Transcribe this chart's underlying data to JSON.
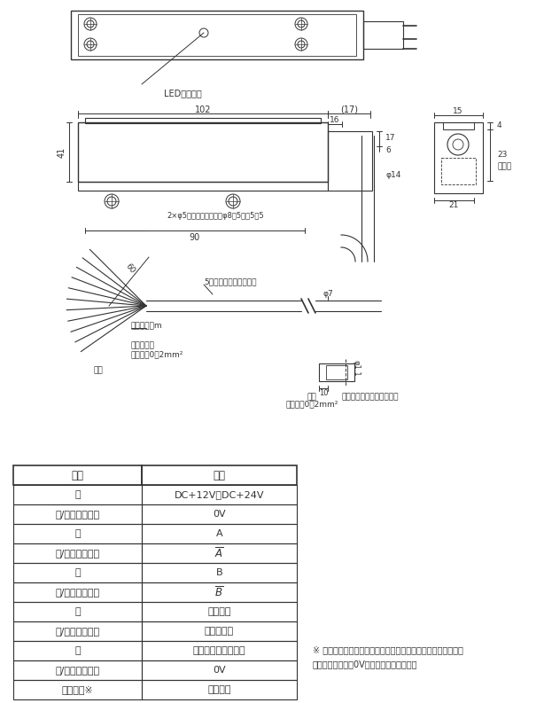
{
  "bg_color": "#ffffff",
  "line_color": "#333333",
  "table_headers": [
    "線色",
    "内容"
  ],
  "table_rows": [
    [
      "黒",
      "DC+12V～DC+24V"
    ],
    [
      "黒/白ストライプ",
      "0V"
    ],
    [
      "赤",
      "A"
    ],
    [
      "赤/白ストライプ",
      "$\\overline{A}$"
    ],
    [
      "緑",
      "B"
    ],
    [
      "緑/白ストライプ",
      "$\\overline{B}$"
    ],
    [
      "黄",
      "警告出力"
    ],
    [
      "黄/白ストライプ",
      "エラー出力"
    ],
    [
      "茶",
      "アナログデータ出力"
    ],
    [
      "茶/白ストライプ",
      "0V"
    ],
    [
      "シールド※",
      "シールド"
    ]
  ],
  "note_line1": "※ シールド線は内部回路及びケースには接続されていません。",
  "note_line2": "　　制御機器側で0Vに接続してください。",
  "led_label": "LED点灯位置",
  "dim_102": "102",
  "dim_17": "(17)",
  "dim_41": "41",
  "dim_16": "16",
  "dim_17b": "17",
  "dim_6": "6",
  "dim_14": "φ14",
  "dim_90": "90",
  "dim_4": "4",
  "dim_15": "15",
  "dim_23": "23",
  "dim_21": "21",
  "dim_60": "60",
  "hole_label": "2×φ5穴通シ両側座繰リφ8．5深サ5．5",
  "twist_label": "5対ツイストペアコード",
  "cord_label": "コード長１m",
  "shield_label": "シールド線",
  "section_label": "断面積：0．2mm²",
  "core_label": "線心",
  "conductor_label": "導体",
  "section2_label": "断面積：0．2mm²",
  "dim_phi7": "φ7",
  "dim_10": "10",
  "dim_phi1": "φ1.1",
  "wire_end_label": "芯線先端拡大図（２：１）",
  "detect_label": "検出面"
}
